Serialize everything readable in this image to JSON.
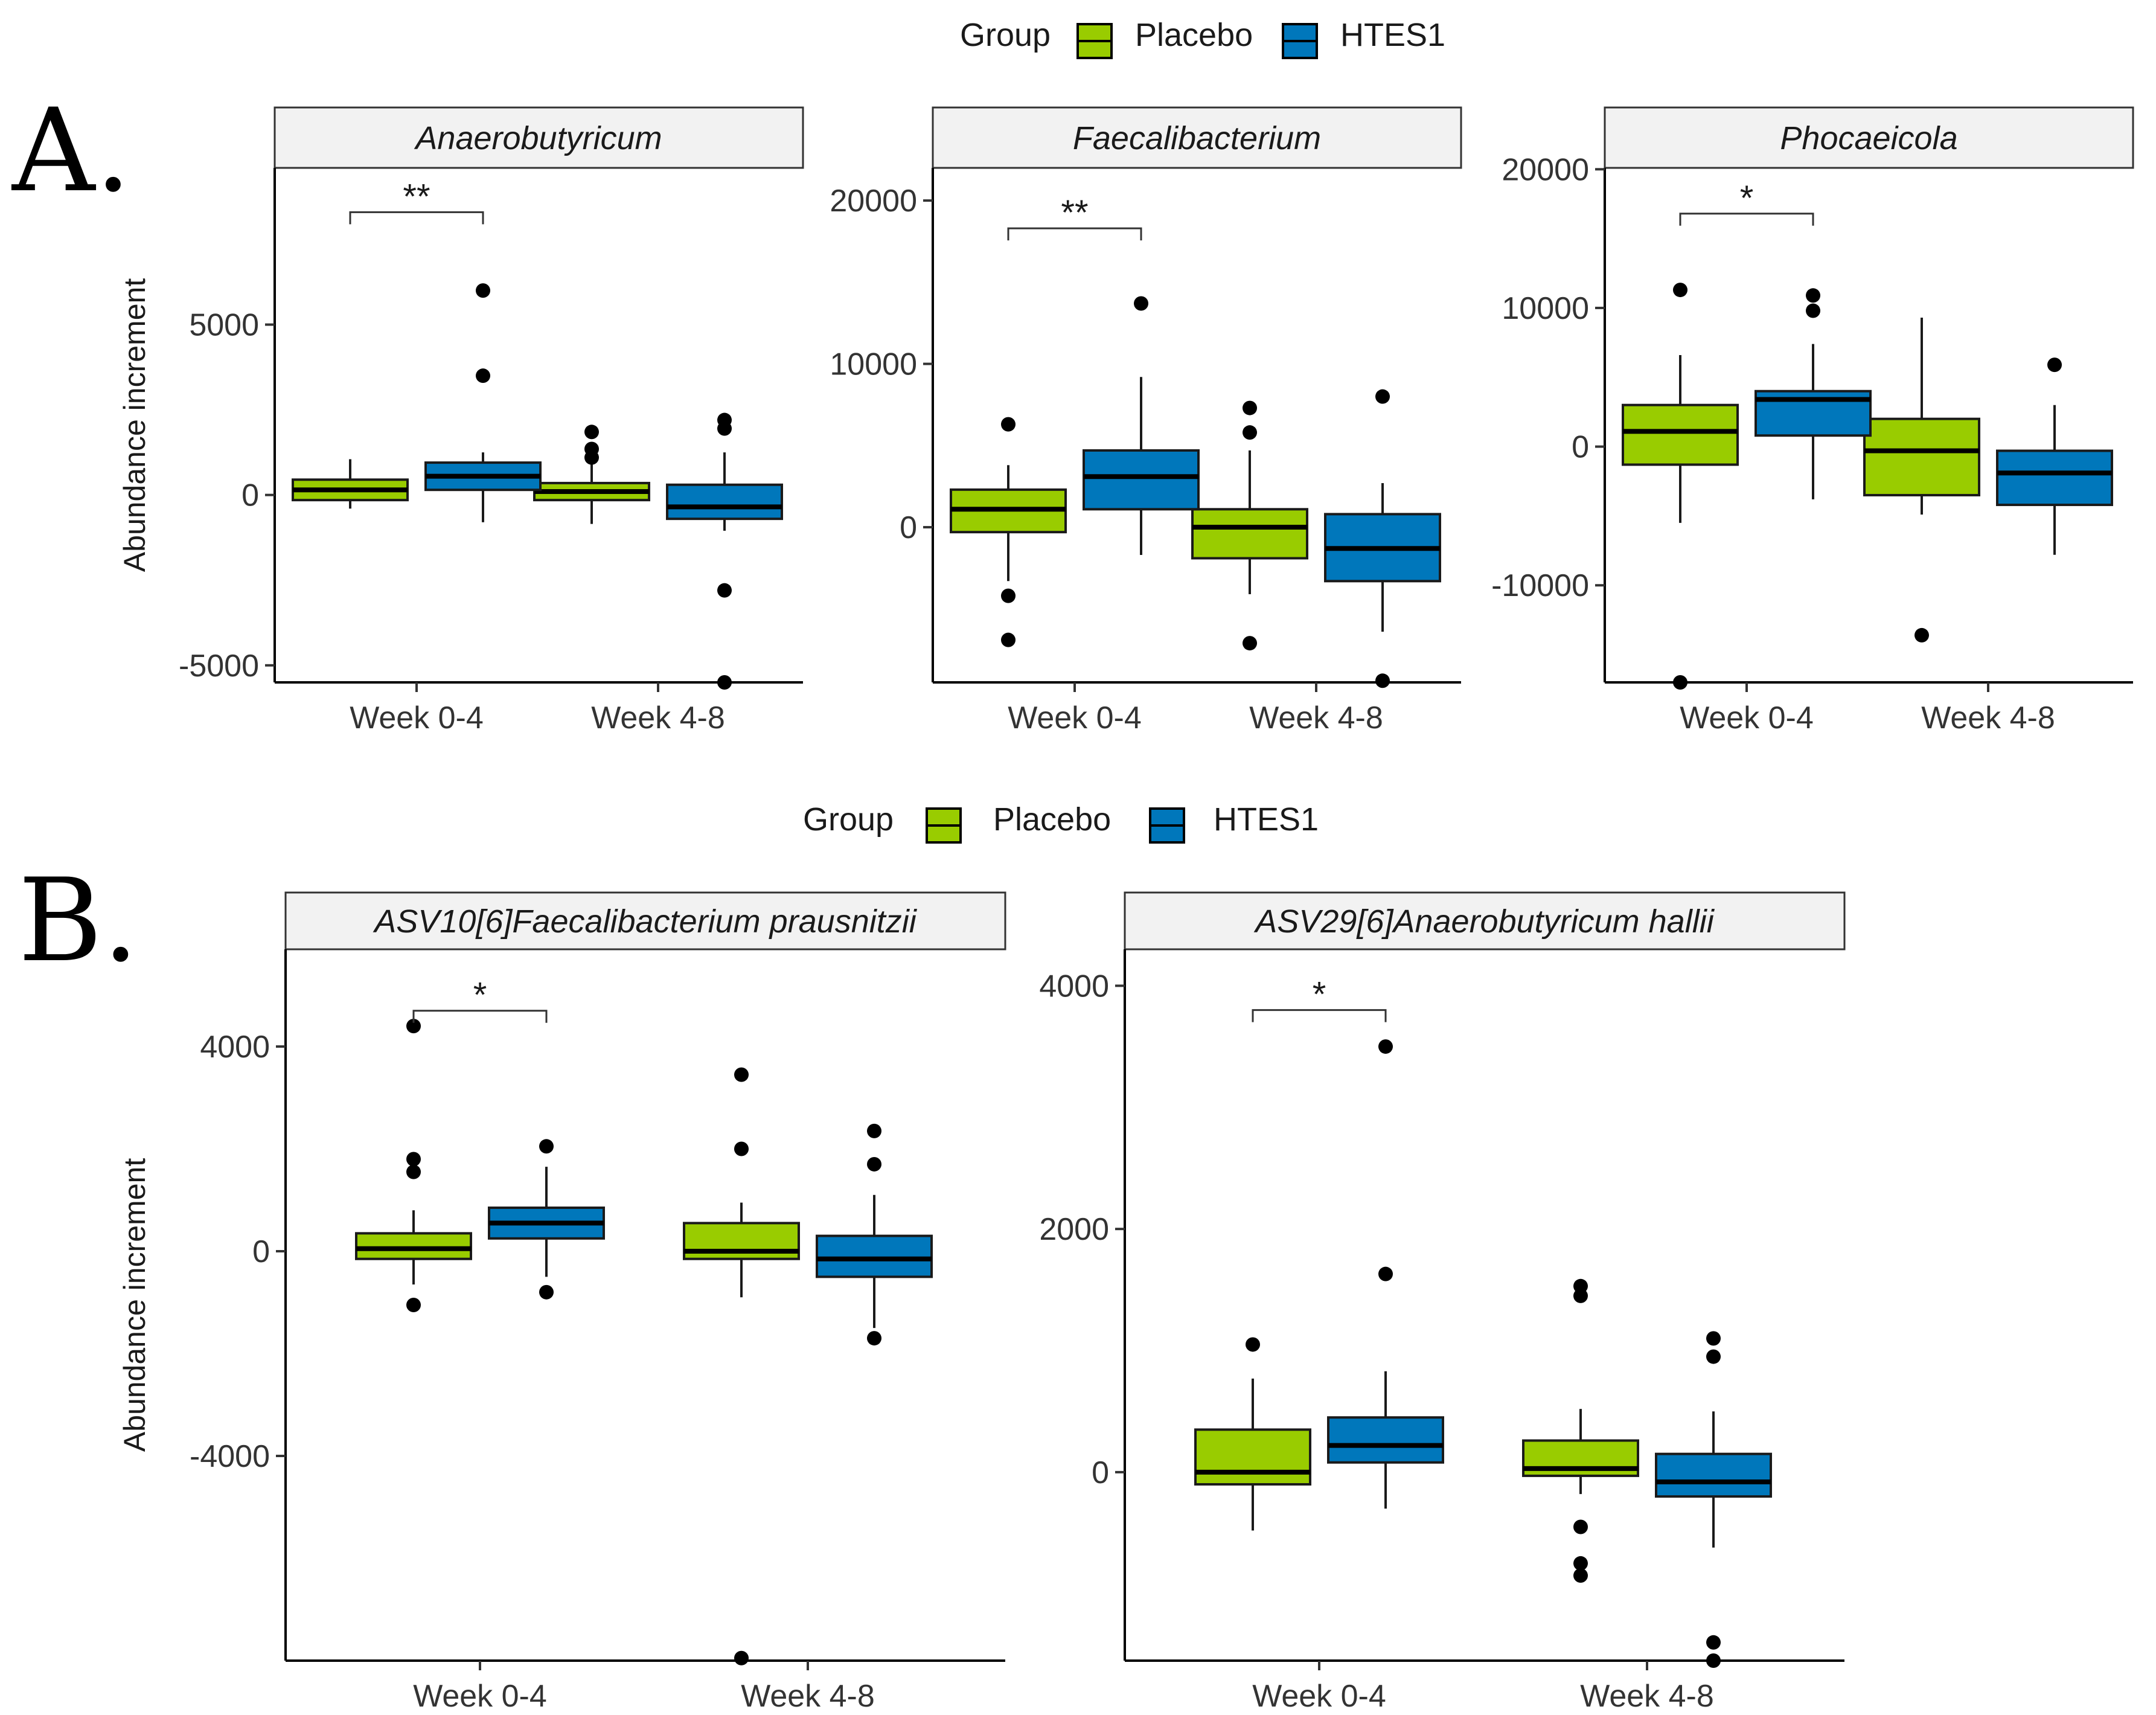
{
  "panel_labels": {
    "A": "A.",
    "B": "B."
  },
  "legend": {
    "title": "Group",
    "entries": [
      {
        "label": "Placebo",
        "color": "#99cc00"
      },
      {
        "label": "HTES1",
        "color": "#0077bb"
      }
    ]
  },
  "colors": {
    "placebo": "#99cc00",
    "htes1": "#0077bb",
    "strip_fill": "#f2f2f2",
    "median": "#000000"
  },
  "chart_data": [
    {
      "type": "box",
      "panel": "A",
      "facet": "Anaerobutyricum",
      "ylabel": "Abundance increment",
      "ylim": [
        -5500,
        9600
      ],
      "yticks": [
        -5000,
        0,
        5000
      ],
      "ytick_labels": [
        "-5000",
        "0",
        "5000"
      ],
      "categories": [
        "Week 0-4",
        "Week 4-8"
      ],
      "series": [
        {
          "name": "Placebo",
          "boxes": [
            {
              "q1": -150,
              "median": 150,
              "q3": 450,
              "whisker_low": -400,
              "whisker_high": 1050,
              "outliers": []
            },
            {
              "q1": -150,
              "median": 100,
              "q3": 350,
              "whisker_low": -850,
              "whisker_high": 950,
              "outliers": [
                1100,
                1350,
                1850
              ]
            }
          ]
        },
        {
          "name": "HTES1",
          "boxes": [
            {
              "q1": 150,
              "median": 550,
              "q3": 950,
              "whisker_low": -800,
              "whisker_high": 1250,
              "outliers": [
                3500,
                6000
              ]
            },
            {
              "q1": -700,
              "median": -350,
              "q3": 300,
              "whisker_low": -1050,
              "whisker_high": 1250,
              "outliers": [
                1950,
                2200,
                -2800,
                -5500
              ]
            }
          ]
        }
      ],
      "significance": [
        {
          "category": "Week 0-4",
          "label": "**",
          "y": 8300
        }
      ]
    },
    {
      "type": "box",
      "panel": "A",
      "facet": "Faecalibacterium",
      "ylabel": "",
      "ylim": [
        -9500,
        22000
      ],
      "yticks": [
        0,
        10000,
        20000
      ],
      "ytick_labels": [
        "0",
        "10000",
        "20000"
      ],
      "categories": [
        "Week 0-4",
        "Week 4-8"
      ],
      "series": [
        {
          "name": "Placebo",
          "boxes": [
            {
              "q1": -300,
              "median": 1100,
              "q3": 2300,
              "whisker_low": -3300,
              "whisker_high": 3800,
              "outliers": [
                6300,
                -4200,
                -6900
              ]
            },
            {
              "q1": -1900,
              "median": 0,
              "q3": 1100,
              "whisker_low": -4100,
              "whisker_high": 4700,
              "outliers": [
                5800,
                7300,
                -7100
              ]
            }
          ]
        },
        {
          "name": "HTES1",
          "boxes": [
            {
              "q1": 1100,
              "median": 3100,
              "q3": 4700,
              "whisker_low": -1700,
              "whisker_high": 9200,
              "outliers": [
                13700
              ]
            },
            {
              "q1": -3300,
              "median": -1300,
              "q3": 800,
              "whisker_low": -6400,
              "whisker_high": 2700,
              "outliers": [
                8000,
                -9400
              ]
            }
          ]
        }
      ],
      "significance": [
        {
          "category": "Week 0-4",
          "label": "**",
          "y": 18300
        }
      ]
    },
    {
      "type": "box",
      "panel": "A",
      "facet": "Phocaeicola",
      "ylabel": "",
      "ylim": [
        -17000,
        20100
      ],
      "yticks": [
        -10000,
        0,
        10000,
        20000
      ],
      "ytick_labels": [
        "-10000",
        "0",
        "10000",
        "20000"
      ],
      "categories": [
        "Week 0-4",
        "Week 4-8"
      ],
      "series": [
        {
          "name": "Placebo",
          "boxes": [
            {
              "q1": -1300,
              "median": 1100,
              "q3": 3000,
              "whisker_low": -5500,
              "whisker_high": 6600,
              "outliers": [
                11300,
                -17000
              ]
            },
            {
              "q1": -3500,
              "median": -300,
              "q3": 2000,
              "whisker_low": -4900,
              "whisker_high": 9300,
              "outliers": [
                -13600
              ]
            }
          ]
        },
        {
          "name": "HTES1",
          "boxes": [
            {
              "q1": 800,
              "median": 3400,
              "q3": 4000,
              "whisker_low": -3800,
              "whisker_high": 7400,
              "outliers": [
                9800,
                10900
              ]
            },
            {
              "q1": -4200,
              "median": -1900,
              "q3": -300,
              "whisker_low": -7800,
              "whisker_high": 3000,
              "outliers": [
                5900
              ]
            }
          ]
        }
      ],
      "significance": [
        {
          "category": "Week 0-4",
          "label": "*",
          "y": 16800
        }
      ]
    },
    {
      "type": "box",
      "panel": "B",
      "facet": "ASV10[6]Faecalibacterium prausnitzii",
      "ylabel": "Abundance increment",
      "ylim": [
        -8000,
        5900
      ],
      "yticks": [
        -4000,
        0,
        4000
      ],
      "ytick_labels": [
        "-4000",
        "0",
        "4000"
      ],
      "categories": [
        "Week 0-4",
        "Week 4-8"
      ],
      "series": [
        {
          "name": "Placebo",
          "boxes": [
            {
              "q1": -150,
              "median": 50,
              "q3": 350,
              "whisker_low": -650,
              "whisker_high": 800,
              "outliers": [
                1550,
                1800,
                4400,
                -1050
              ]
            },
            {
              "q1": -150,
              "median": 0,
              "q3": 550,
              "whisker_low": -900,
              "whisker_high": 950,
              "outliers": [
                2000,
                3450,
                -7950
              ]
            }
          ]
        },
        {
          "name": "HTES1",
          "boxes": [
            {
              "q1": 250,
              "median": 550,
              "q3": 850,
              "whisker_low": -500,
              "whisker_high": 1650,
              "outliers": [
                2050,
                -800
              ]
            },
            {
              "q1": -500,
              "median": -150,
              "q3": 300,
              "whisker_low": -1500,
              "whisker_high": 1100,
              "outliers": [
                1700,
                2350,
                -1700
              ]
            }
          ]
        }
      ],
      "significance": [
        {
          "category": "Week 0-4",
          "label": "*",
          "y": 4700
        }
      ]
    },
    {
      "type": "box",
      "panel": "B",
      "facet": "ASV29[6]Anaerobutyricum hallii",
      "ylabel": "",
      "ylim": [
        -1550,
        4300
      ],
      "yticks": [
        0,
        2000,
        4000
      ],
      "ytick_labels": [
        "0",
        "2000",
        "4000"
      ],
      "categories": [
        "Week 0-4",
        "Week 4-8"
      ],
      "series": [
        {
          "name": "Placebo",
          "boxes": [
            {
              "q1": -100,
              "median": 0,
              "q3": 350,
              "whisker_low": -480,
              "whisker_high": 770,
              "outliers": [
                1050
              ]
            },
            {
              "q1": -30,
              "median": 30,
              "q3": 260,
              "whisker_low": -180,
              "whisker_high": 520,
              "outliers": [
                1450,
                1530,
                -450,
                -750,
                -850
              ]
            }
          ]
        },
        {
          "name": "HTES1",
          "boxes": [
            {
              "q1": 80,
              "median": 220,
              "q3": 450,
              "whisker_low": -300,
              "whisker_high": 830,
              "outliers": [
                1630,
                3500
              ]
            },
            {
              "q1": -200,
              "median": -80,
              "q3": 150,
              "whisker_low": -620,
              "whisker_high": 500,
              "outliers": [
                950,
                1100,
                -1400,
                -1550
              ]
            }
          ]
        }
      ],
      "significance": [
        {
          "category": "Week 0-4",
          "label": "*",
          "y": 3800
        }
      ]
    }
  ]
}
